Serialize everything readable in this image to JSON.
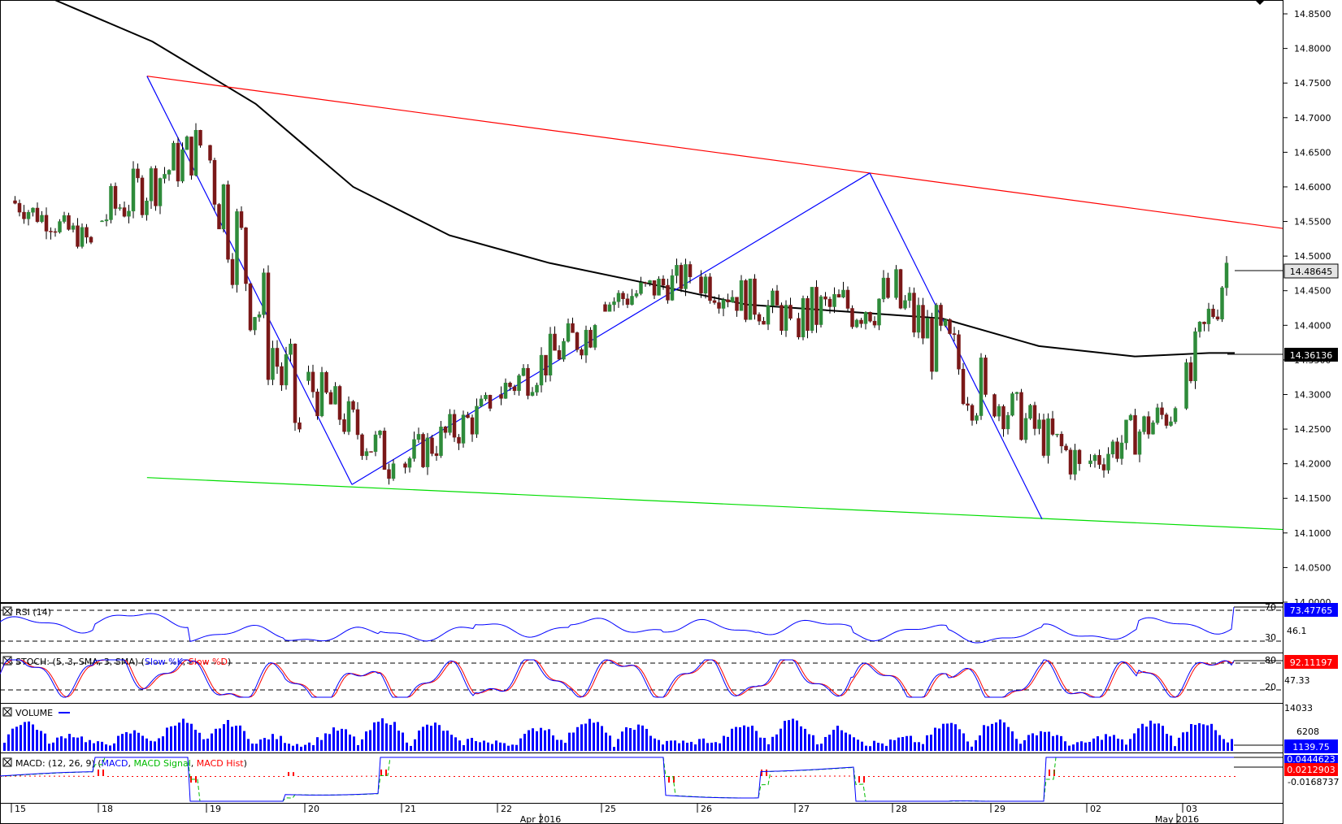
{
  "colors": {
    "candle_up": "#2e8b3a",
    "candle_down": "#7a1818",
    "sma": "#000000",
    "channel_top": "#ff0000",
    "channel_bottom": "#00dd00",
    "zigzag": "#0000ff",
    "rsi": "#0000ff",
    "stoch_k": "#0000ff",
    "stoch_d": "#ff0000",
    "volume": "#0000ff",
    "macd": "#0000ff",
    "macd_signal": "#00bb00",
    "macd_hist": "#ff0000",
    "label_blue": "#0000ff",
    "label_red": "#ff0000",
    "label_black": "#000000"
  },
  "panels": {
    "rsi": {
      "title": "RSI (14)",
      "current": "73.47765",
      "levels": [
        "70",
        "46.1",
        "30"
      ]
    },
    "stoch": {
      "title_main": "STOCH: (5, 3, SMA, 3, SMA) (",
      "title_k": "Slow %K",
      "title_sep": ", ",
      "title_d": "Slow %D",
      "title_end": ")",
      "current": "92.11197",
      "levels": [
        "80",
        "47.33",
        "20"
      ]
    },
    "volume": {
      "title": "VOLUME",
      "current": "1139.75",
      "levels": [
        "14033",
        "6208"
      ]
    },
    "macd": {
      "title_main": "MACD: (12, 26, 9) (",
      "title_macd": "MACD",
      "title_sep1": ", ",
      "title_signal": "MACD Signal",
      "title_sep2": ", ",
      "title_hist": "MACD Hist",
      "title_end": ")",
      "current_macd": "0.0444623",
      "current_hist": "0.0212903",
      "level": "-0.0168737"
    }
  },
  "price_labels": {
    "last": "14.48645",
    "sma": "14.36136"
  },
  "x_axis": {
    "day_labels": [
      "15",
      "18",
      "19",
      "20",
      "21",
      "22",
      "25",
      "26",
      "27",
      "28",
      "29",
      "02",
      "03"
    ],
    "month_labels": [
      "Apr 2016",
      "May 2016"
    ]
  },
  "chart_data": {
    "type": "candlestick",
    "symbol_price_axis": {
      "ylim": [
        14.0,
        14.87
      ],
      "tick_labels": [
        "14.0000",
        "14.0500",
        "14.1000",
        "14.1500",
        "14.2000",
        "14.2500",
        "14.3000",
        "14.3500",
        "14.4000",
        "14.4500",
        "14.5000",
        "14.5500",
        "14.6000",
        "14.6500",
        "14.7000",
        "14.7500",
        "14.8000",
        "14.8500"
      ]
    },
    "candles_by_day": [
      {
        "day": "15",
        "open": 14.58,
        "high": 14.59,
        "low": 14.48,
        "close": 14.52
      },
      {
        "day": "18",
        "open": 14.55,
        "high": 14.76,
        "low": 14.53,
        "close": 14.66
      },
      {
        "day": "19",
        "open": 14.66,
        "high": 14.68,
        "low": 14.19,
        "close": 14.25
      },
      {
        "day": "20",
        "open": 14.32,
        "high": 14.38,
        "low": 14.17,
        "close": 14.2
      },
      {
        "day": "21",
        "open": 14.2,
        "high": 14.34,
        "low": 14.17,
        "close": 14.28
      },
      {
        "day": "22",
        "open": 14.3,
        "high": 14.45,
        "low": 14.26,
        "close": 14.4
      },
      {
        "day": "25",
        "open": 14.43,
        "high": 14.56,
        "low": 14.42,
        "close": 14.47
      },
      {
        "day": "26",
        "open": 14.47,
        "high": 14.55,
        "low": 14.37,
        "close": 14.41
      },
      {
        "day": "27",
        "open": 14.41,
        "high": 14.62,
        "low": 14.37,
        "close": 14.44
      },
      {
        "day": "28",
        "open": 14.44,
        "high": 14.58,
        "low": 14.25,
        "close": 14.3
      },
      {
        "day": "29",
        "open": 14.3,
        "high": 14.32,
        "low": 14.12,
        "close": 14.2
      },
      {
        "day": "02",
        "open": 14.2,
        "high": 14.36,
        "low": 14.18,
        "close": 14.28
      },
      {
        "day": "03",
        "open": 14.28,
        "high": 14.5,
        "low": 14.22,
        "close": 14.49
      }
    ],
    "sma_overlay": [
      {
        "day": "15",
        "value": 14.87
      },
      {
        "day": "18",
        "value": 14.81
      },
      {
        "day": "19",
        "value": 14.72
      },
      {
        "day": "20",
        "value": 14.6
      },
      {
        "day": "21",
        "value": 14.53
      },
      {
        "day": "22",
        "value": 14.49
      },
      {
        "day": "25",
        "value": 14.46
      },
      {
        "day": "26",
        "value": 14.43
      },
      {
        "day": "27",
        "value": 14.42
      },
      {
        "day": "28",
        "value": 14.41
      },
      {
        "day": "29",
        "value": 14.37
      },
      {
        "day": "02",
        "value": 14.355
      },
      {
        "day": "03",
        "value": 14.36
      }
    ],
    "channel_upper": {
      "from": {
        "day": "18",
        "price": 14.76
      },
      "to": {
        "day": "03",
        "price": 14.54
      }
    },
    "channel_lower": {
      "from": {
        "day": "18",
        "price": 14.18
      },
      "to": {
        "day": "03",
        "price": 14.105
      }
    },
    "zigzag": [
      {
        "day": "18",
        "price": 14.76
      },
      {
        "day": "20",
        "price": 14.17
      },
      {
        "day": "27",
        "price": 14.62
      },
      {
        "day": "29",
        "price": 14.12
      }
    ],
    "grid": false,
    "legend": "none"
  }
}
